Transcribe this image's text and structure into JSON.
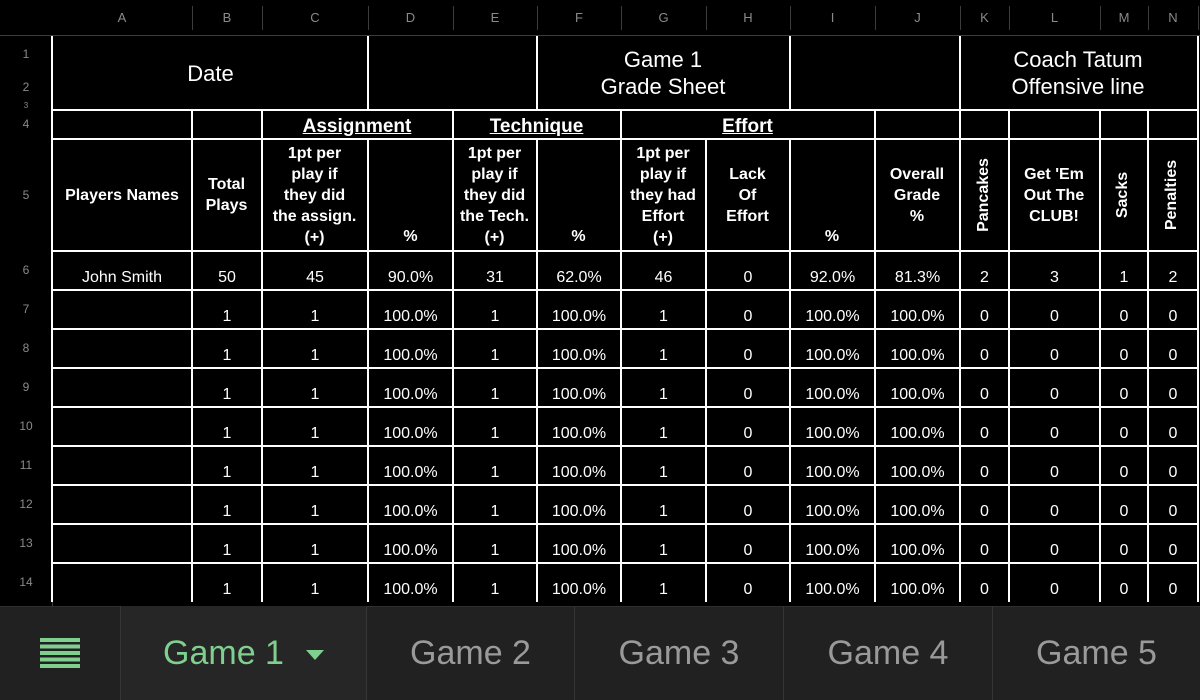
{
  "columns": [
    "A",
    "B",
    "C",
    "D",
    "E",
    "F",
    "G",
    "H",
    "I",
    "J",
    "K",
    "L",
    "M",
    "N"
  ],
  "rows": [
    "1",
    "2",
    "3",
    "4",
    "5",
    "6",
    "7",
    "8",
    "9",
    "10",
    "11",
    "12",
    "13",
    "14"
  ],
  "sheet": {
    "date_label": "Date",
    "game_title_line1": "Game 1",
    "game_title_line2": "Grade Sheet",
    "coach_line1": "Coach Tatum",
    "coach_line2": "Offensive line",
    "groups": {
      "assignment": "Assignment",
      "technique": "Technique",
      "effort": "Effort"
    },
    "headers": {
      "players_names": "Players Names",
      "total_plays": [
        "Total",
        "Plays"
      ],
      "assign_pt": [
        "1pt per",
        "play if",
        "they did",
        "the assign.",
        "(+)"
      ],
      "pct": "%",
      "tech_pt": [
        "1pt per",
        "play if",
        "they did",
        "the Tech.",
        "(+)"
      ],
      "effort_pt": [
        "1pt per",
        "play if",
        "they had",
        "Effort",
        "(+)"
      ],
      "lack_effort": [
        "Lack",
        "Of",
        "Effort"
      ],
      "overall": [
        "Overall",
        "Grade",
        "%"
      ],
      "pancakes": "Pancakes",
      "get_em_out": [
        "Get 'Em",
        "Out The",
        "CLUB!"
      ],
      "sacks": "Sacks",
      "penalties": "Penalties"
    },
    "data_rows": [
      [
        "John Smith",
        "50",
        "45",
        "90.0%",
        "31",
        "62.0%",
        "46",
        "0",
        "92.0%",
        "81.3%",
        "2",
        "3",
        "1",
        "2"
      ],
      [
        "",
        "1",
        "1",
        "100.0%",
        "1",
        "100.0%",
        "1",
        "0",
        "100.0%",
        "100.0%",
        "0",
        "0",
        "0",
        "0"
      ],
      [
        "",
        "1",
        "1",
        "100.0%",
        "1",
        "100.0%",
        "1",
        "0",
        "100.0%",
        "100.0%",
        "0",
        "0",
        "0",
        "0"
      ],
      [
        "",
        "1",
        "1",
        "100.0%",
        "1",
        "100.0%",
        "1",
        "0",
        "100.0%",
        "100.0%",
        "0",
        "0",
        "0",
        "0"
      ],
      [
        "",
        "1",
        "1",
        "100.0%",
        "1",
        "100.0%",
        "1",
        "0",
        "100.0%",
        "100.0%",
        "0",
        "0",
        "0",
        "0"
      ],
      [
        "",
        "1",
        "1",
        "100.0%",
        "1",
        "100.0%",
        "1",
        "0",
        "100.0%",
        "100.0%",
        "0",
        "0",
        "0",
        "0"
      ],
      [
        "",
        "1",
        "1",
        "100.0%",
        "1",
        "100.0%",
        "1",
        "0",
        "100.0%",
        "100.0%",
        "0",
        "0",
        "0",
        "0"
      ],
      [
        "",
        "1",
        "1",
        "100.0%",
        "1",
        "100.0%",
        "1",
        "0",
        "100.0%",
        "100.0%",
        "0",
        "0",
        "0",
        "0"
      ],
      [
        "",
        "1",
        "1",
        "100.0%",
        "1",
        "100.0%",
        "1",
        "0",
        "100.0%",
        "100.0%",
        "0",
        "0",
        "0",
        "0"
      ]
    ]
  },
  "tabs": [
    "Game 1",
    "Game 2",
    "Game 3",
    "Game 4",
    "Game 5"
  ],
  "active_tab": "Game 1",
  "menu_icon": "sheets-menu-icon",
  "colors": {
    "background": "#000000",
    "grid_line": "#ffffff",
    "active_tab": "#7fcf8e",
    "inactive_tab": "#9a9a9a"
  }
}
